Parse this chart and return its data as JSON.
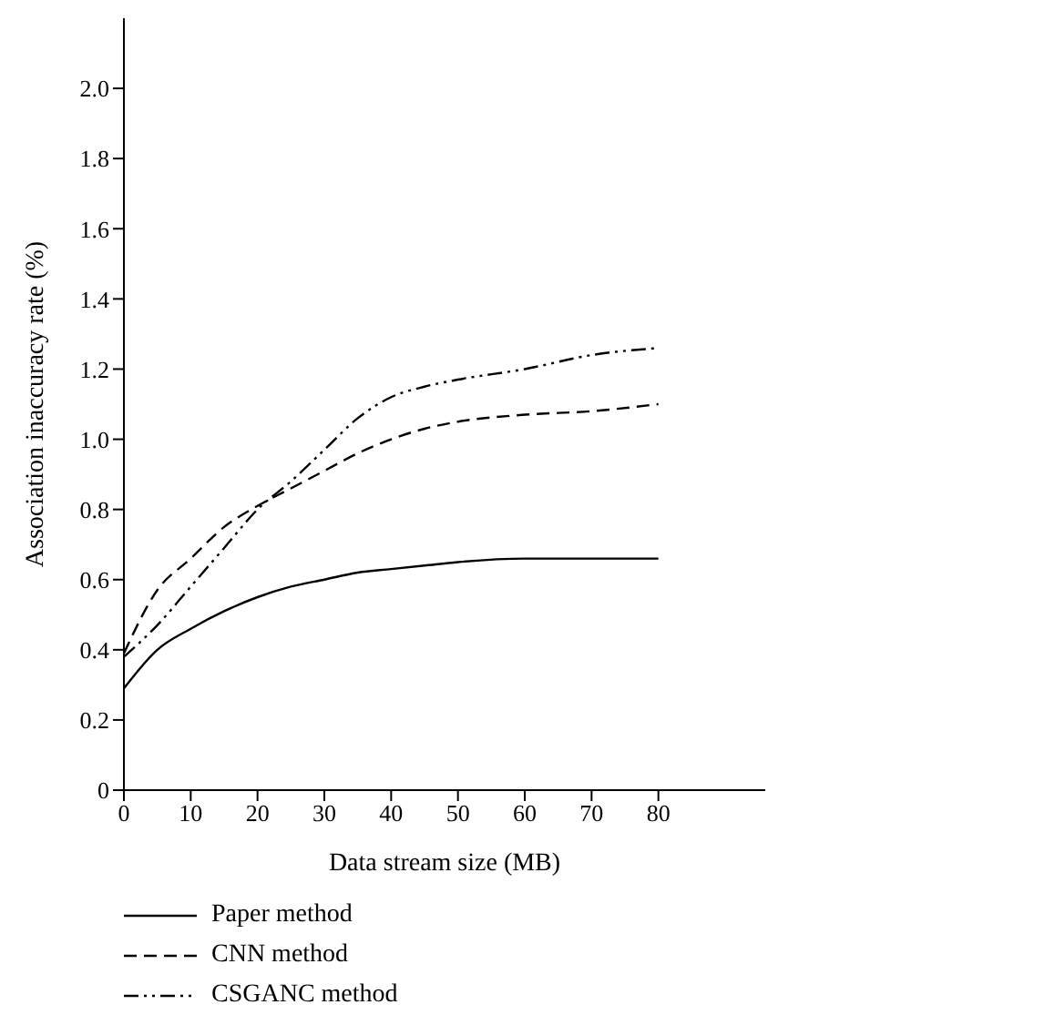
{
  "chart_data": {
    "type": "line",
    "xlabel": "Data stream size (MB)",
    "ylabel": "Association inaccuracy rate (%)",
    "x": [
      0,
      5,
      10,
      15,
      20,
      25,
      30,
      35,
      40,
      45,
      50,
      60,
      70,
      80
    ],
    "xlim": [
      0,
      96
    ],
    "xticks": [
      0,
      10,
      20,
      30,
      40,
      50,
      60,
      70,
      80
    ],
    "ylim": [
      0,
      2.2
    ],
    "yticks": [
      0,
      0.2,
      0.4,
      0.6,
      0.8,
      {
        "value": 1,
        "label": "1.0"
      },
      1.2,
      1.4,
      1.6,
      1.8,
      {
        "value": 2,
        "label": "2.0"
      }
    ],
    "grid": false,
    "legend": "bottom",
    "marker": "none",
    "series": [
      {
        "name": "Paper method",
        "color": "#000000",
        "line_style": "solid",
        "values": [
          0.29,
          0.4,
          0.46,
          0.51,
          0.55,
          0.58,
          0.6,
          0.62,
          0.63,
          0.64,
          0.65,
          0.66,
          0.66,
          0.66
        ]
      },
      {
        "name": "CNN method",
        "color": "#000000",
        "line_style": "dashed",
        "values": [
          0.39,
          0.57,
          0.66,
          0.75,
          0.81,
          0.86,
          0.91,
          0.96,
          1.0,
          1.03,
          1.05,
          1.07,
          1.08,
          1.1
        ]
      },
      {
        "name": "CSGANC method",
        "color": "#000000",
        "line_style": "dashdot",
        "values": [
          0.38,
          0.47,
          0.58,
          0.69,
          0.8,
          0.88,
          0.97,
          1.06,
          1.12,
          1.15,
          1.17,
          1.2,
          1.24,
          1.26
        ]
      }
    ]
  }
}
